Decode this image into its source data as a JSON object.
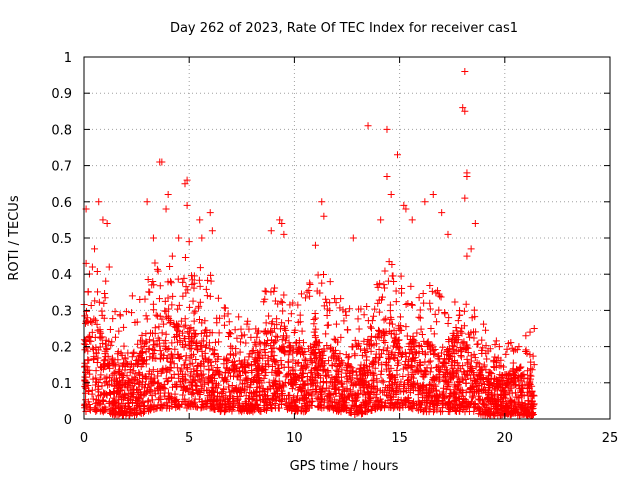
{
  "chart_data": {
    "type": "scatter",
    "title": "Day 262 of 2023, Rate Of TEC Index for receiver cas1",
    "xlabel": "GPS time / hours",
    "ylabel": "ROTI / TECUs",
    "xlim": [
      0,
      25
    ],
    "ylim": [
      0,
      1
    ],
    "xticks": [
      "0",
      "5",
      "10",
      "15",
      "20",
      "25"
    ],
    "yticks": [
      "0",
      "0.1",
      "0.2",
      "0.3",
      "0.4",
      "0.5",
      "0.6",
      "0.7",
      "0.8",
      "0.9",
      "1"
    ],
    "grid": true,
    "marker": "+",
    "series_color": "#ff0000",
    "notable_points": [
      {
        "x": 0.1,
        "y": 0.58
      },
      {
        "x": 0.1,
        "y": 0.43
      },
      {
        "x": 0.4,
        "y": 0.42
      },
      {
        "x": 0.5,
        "y": 0.47
      },
      {
        "x": 0.7,
        "y": 0.6
      },
      {
        "x": 0.9,
        "y": 0.55
      },
      {
        "x": 1.1,
        "y": 0.54
      },
      {
        "x": 1.2,
        "y": 0.42
      },
      {
        "x": 2.3,
        "y": 0.34
      },
      {
        "x": 3.0,
        "y": 0.6
      },
      {
        "x": 3.3,
        "y": 0.5
      },
      {
        "x": 3.6,
        "y": 0.71
      },
      {
        "x": 3.7,
        "y": 0.71
      },
      {
        "x": 3.9,
        "y": 0.58
      },
      {
        "x": 4.0,
        "y": 0.62
      },
      {
        "x": 4.2,
        "y": 0.45
      },
      {
        "x": 4.5,
        "y": 0.5
      },
      {
        "x": 4.8,
        "y": 0.65
      },
      {
        "x": 4.9,
        "y": 0.66
      },
      {
        "x": 4.9,
        "y": 0.59
      },
      {
        "x": 5.0,
        "y": 0.49
      },
      {
        "x": 5.5,
        "y": 0.55
      },
      {
        "x": 5.6,
        "y": 0.5
      },
      {
        "x": 6.0,
        "y": 0.57
      },
      {
        "x": 6.1,
        "y": 0.52
      },
      {
        "x": 9.3,
        "y": 0.55
      },
      {
        "x": 9.4,
        "y": 0.54
      },
      {
        "x": 9.5,
        "y": 0.51
      },
      {
        "x": 8.9,
        "y": 0.52
      },
      {
        "x": 11.3,
        "y": 0.6
      },
      {
        "x": 11.4,
        "y": 0.56
      },
      {
        "x": 11.0,
        "y": 0.48
      },
      {
        "x": 12.8,
        "y": 0.5
      },
      {
        "x": 13.5,
        "y": 0.81
      },
      {
        "x": 14.1,
        "y": 0.55
      },
      {
        "x": 14.4,
        "y": 0.8
      },
      {
        "x": 14.4,
        "y": 0.67
      },
      {
        "x": 14.6,
        "y": 0.62
      },
      {
        "x": 14.9,
        "y": 0.73
      },
      {
        "x": 15.2,
        "y": 0.59
      },
      {
        "x": 15.3,
        "y": 0.58
      },
      {
        "x": 15.6,
        "y": 0.55
      },
      {
        "x": 16.2,
        "y": 0.6
      },
      {
        "x": 16.6,
        "y": 0.62
      },
      {
        "x": 17.0,
        "y": 0.57
      },
      {
        "x": 17.3,
        "y": 0.51
      },
      {
        "x": 18.1,
        "y": 0.96
      },
      {
        "x": 18.0,
        "y": 0.86
      },
      {
        "x": 18.1,
        "y": 0.85
      },
      {
        "x": 18.2,
        "y": 0.68
      },
      {
        "x": 18.2,
        "y": 0.67
      },
      {
        "x": 18.1,
        "y": 0.61
      },
      {
        "x": 18.2,
        "y": 0.45
      },
      {
        "x": 18.6,
        "y": 0.54
      },
      {
        "x": 18.4,
        "y": 0.47
      },
      {
        "x": 21.2,
        "y": 0.24
      },
      {
        "x": 21.4,
        "y": 0.25
      },
      {
        "x": 21.0,
        "y": 0.23
      }
    ],
    "density_profile": [
      {
        "x": 0.0,
        "base": 0.02,
        "peak": 0.22,
        "max": 0.38
      },
      {
        "x": 0.5,
        "base": 0.02,
        "peak": 0.28,
        "max": 0.43
      },
      {
        "x": 1.0,
        "base": 0.02,
        "peak": 0.2,
        "max": 0.42
      },
      {
        "x": 1.5,
        "base": 0.01,
        "peak": 0.15,
        "max": 0.3
      },
      {
        "x": 2.0,
        "base": 0.01,
        "peak": 0.15,
        "max": 0.3
      },
      {
        "x": 2.5,
        "base": 0.01,
        "peak": 0.16,
        "max": 0.3
      },
      {
        "x": 3.0,
        "base": 0.02,
        "peak": 0.22,
        "max": 0.4
      },
      {
        "x": 3.5,
        "base": 0.03,
        "peak": 0.28,
        "max": 0.45
      },
      {
        "x": 4.0,
        "base": 0.03,
        "peak": 0.25,
        "max": 0.45
      },
      {
        "x": 4.5,
        "base": 0.03,
        "peak": 0.26,
        "max": 0.45
      },
      {
        "x": 5.0,
        "base": 0.03,
        "peak": 0.28,
        "max": 0.45
      },
      {
        "x": 5.5,
        "base": 0.03,
        "peak": 0.24,
        "max": 0.42
      },
      {
        "x": 6.0,
        "base": 0.03,
        "peak": 0.22,
        "max": 0.4
      },
      {
        "x": 6.5,
        "base": 0.02,
        "peak": 0.18,
        "max": 0.33
      },
      {
        "x": 7.0,
        "base": 0.02,
        "peak": 0.18,
        "max": 0.32
      },
      {
        "x": 7.5,
        "base": 0.02,
        "peak": 0.15,
        "max": 0.3
      },
      {
        "x": 8.0,
        "base": 0.02,
        "peak": 0.15,
        "max": 0.25
      },
      {
        "x": 8.5,
        "base": 0.02,
        "peak": 0.2,
        "max": 0.35
      },
      {
        "x": 9.0,
        "base": 0.03,
        "peak": 0.22,
        "max": 0.38
      },
      {
        "x": 9.5,
        "base": 0.03,
        "peak": 0.22,
        "max": 0.4
      },
      {
        "x": 10.0,
        "base": 0.02,
        "peak": 0.2,
        "max": 0.35
      },
      {
        "x": 10.5,
        "base": 0.02,
        "peak": 0.18,
        "max": 0.35
      },
      {
        "x": 11.0,
        "base": 0.03,
        "peak": 0.22,
        "max": 0.42
      },
      {
        "x": 11.5,
        "base": 0.03,
        "peak": 0.22,
        "max": 0.42
      },
      {
        "x": 12.0,
        "base": 0.02,
        "peak": 0.18,
        "max": 0.35
      },
      {
        "x": 12.5,
        "base": 0.02,
        "peak": 0.15,
        "max": 0.35
      },
      {
        "x": 13.0,
        "base": 0.01,
        "peak": 0.13,
        "max": 0.3
      },
      {
        "x": 13.5,
        "base": 0.02,
        "peak": 0.2,
        "max": 0.38
      },
      {
        "x": 14.0,
        "base": 0.03,
        "peak": 0.24,
        "max": 0.42
      },
      {
        "x": 14.5,
        "base": 0.03,
        "peak": 0.24,
        "max": 0.45
      },
      {
        "x": 15.0,
        "base": 0.03,
        "peak": 0.25,
        "max": 0.45
      },
      {
        "x": 15.5,
        "base": 0.03,
        "peak": 0.22,
        "max": 0.42
      },
      {
        "x": 16.0,
        "base": 0.02,
        "peak": 0.2,
        "max": 0.38
      },
      {
        "x": 16.5,
        "base": 0.02,
        "peak": 0.2,
        "max": 0.38
      },
      {
        "x": 17.0,
        "base": 0.02,
        "peak": 0.18,
        "max": 0.35
      },
      {
        "x": 17.5,
        "base": 0.02,
        "peak": 0.2,
        "max": 0.35
      },
      {
        "x": 18.0,
        "base": 0.02,
        "peak": 0.2,
        "max": 0.35
      },
      {
        "x": 18.5,
        "base": 0.02,
        "peak": 0.18,
        "max": 0.32
      },
      {
        "x": 19.0,
        "base": 0.01,
        "peak": 0.14,
        "max": 0.28
      },
      {
        "x": 19.5,
        "base": 0.01,
        "peak": 0.12,
        "max": 0.22
      },
      {
        "x": 20.0,
        "base": 0.01,
        "peak": 0.12,
        "max": 0.22
      },
      {
        "x": 20.5,
        "base": 0.01,
        "peak": 0.12,
        "max": 0.22
      },
      {
        "x": 21.0,
        "base": 0.01,
        "peak": 0.12,
        "max": 0.2
      },
      {
        "x": 21.4,
        "base": 0.01,
        "peak": 0.1,
        "max": 0.2
      }
    ]
  }
}
